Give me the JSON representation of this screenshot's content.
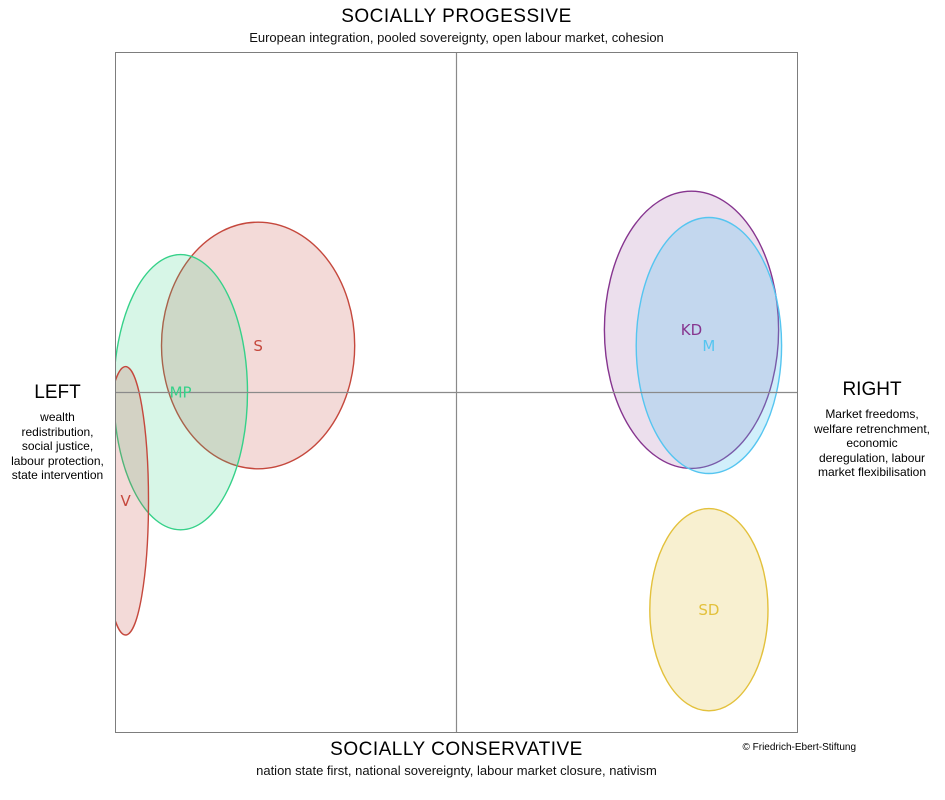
{
  "titles": {
    "top": {
      "label": "SOCIALLY PROGESSIVE",
      "sub": "European integration, pooled sovereignty, open labour market, cohesion"
    },
    "bottom": {
      "label": "SOCIALLY CONSERVATIVE",
      "sub": "nation state first, national sovereignty, labour market closure, nativism"
    }
  },
  "axes": {
    "left": {
      "label": "LEFT",
      "sub": "wealth\nredistribution,\nsocial justice,\nlabour protection,\nstate intervention"
    },
    "right": {
      "label": "RIGHT",
      "sub": "Market freedoms,\nwelfare retrenchment,\neconomic\nderegulation, labour\nmarket flexibilisation"
    }
  },
  "credit": "© Friedrich-Ebert-Stiftung",
  "colors": {
    "frame": "#7d7d7d",
    "axis_line": "#8a8a8a"
  },
  "chart_data": {
    "type": "scatter",
    "description": "Two-dimensional political space with parties drawn as ellipses covering their positional range",
    "x_axis": {
      "range": [
        -1,
        1
      ],
      "label_left": "LEFT",
      "label_right": "RIGHT",
      "ticks": "none"
    },
    "y_axis": {
      "range": [
        -1,
        1
      ],
      "label_top": "SOCIALLY PROGESSIVE",
      "label_bottom": "SOCIALLY CONSERVATIVE",
      "ticks": "none"
    },
    "grid": "center-cross-only",
    "legend": "labels-inside-ellipses",
    "series": [
      {
        "name": "S",
        "x": -0.581,
        "y": 0.138,
        "rx": 0.283,
        "ry": 0.362,
        "color": "#c5483d",
        "fill": "rgba(197,72,61,0.20)"
      },
      {
        "name": "MP",
        "x": -0.808,
        "y": 0.001,
        "rx": 0.196,
        "ry": 0.404,
        "color": "#35d189",
        "fill": "rgba(53,209,137,0.20)"
      },
      {
        "name": "V",
        "x": -0.969,
        "y": -0.318,
        "rx": 0.067,
        "ry": 0.394,
        "color": "#c5483d",
        "fill": "rgba(197,72,61,0.20)"
      },
      {
        "name": "KD",
        "x": 0.688,
        "y": 0.184,
        "rx": 0.255,
        "ry": 0.407,
        "color": "#86358f",
        "fill": "rgba(134,53,143,0.16)"
      },
      {
        "name": "M",
        "x": 0.739,
        "y": 0.138,
        "rx": 0.213,
        "ry": 0.376,
        "color": "#55c5f0",
        "fill": "rgba(85,197,240,0.27)"
      },
      {
        "name": "SD",
        "x": 0.739,
        "y": -0.638,
        "rx": 0.173,
        "ry": 0.297,
        "color": "#e3c13c",
        "fill": "rgba(227,193,60,0.24)"
      }
    ]
  }
}
